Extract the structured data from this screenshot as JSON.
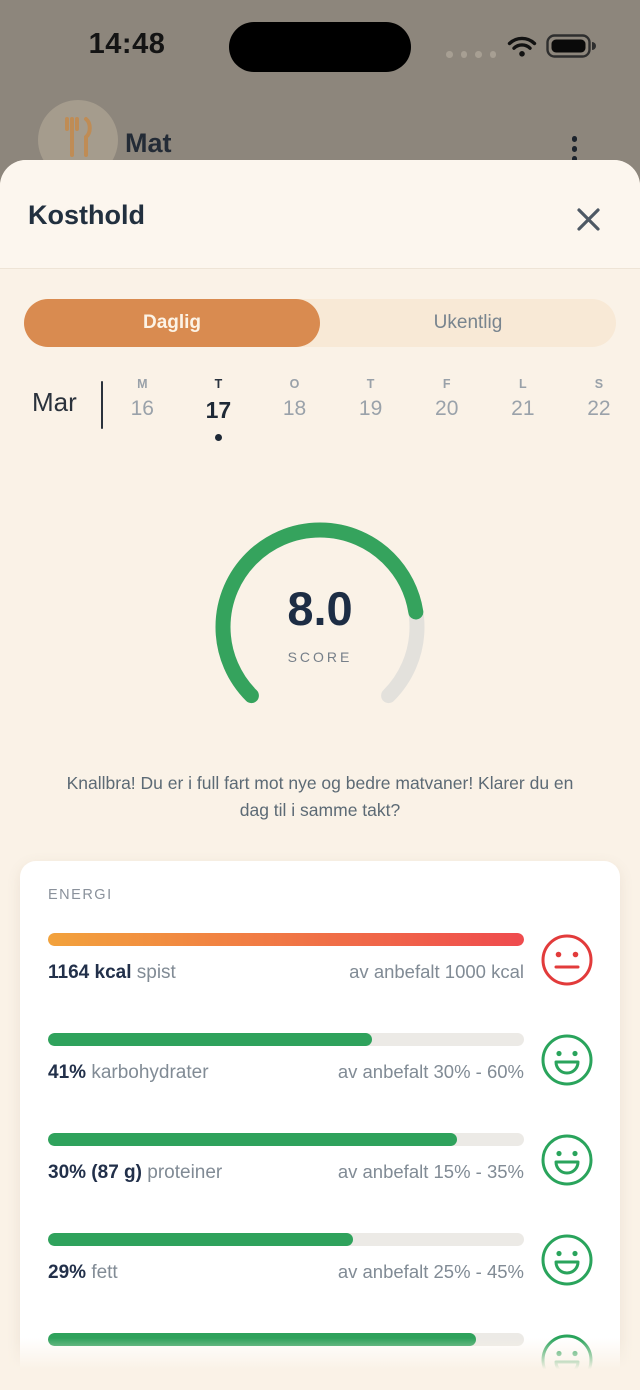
{
  "status_bar": {
    "time": "14:48",
    "icons": [
      "cellular-dots",
      "wifi",
      "battery-full"
    ]
  },
  "background_app": {
    "title": "Mat",
    "avatar_icon": "fork-knife",
    "menu_icon": "kebab-menu"
  },
  "modal": {
    "title": "Kosthold",
    "close_icon": "close",
    "tabs": [
      {
        "label": "Daglig",
        "selected": true
      },
      {
        "label": "Ukentlig",
        "selected": false
      }
    ],
    "date_picker": {
      "month": "Mar",
      "days": [
        {
          "letter": "M",
          "number": "16",
          "selected": false
        },
        {
          "letter": "T",
          "number": "17",
          "selected": true
        },
        {
          "letter": "O",
          "number": "18",
          "selected": false
        },
        {
          "letter": "T",
          "number": "19",
          "selected": false
        },
        {
          "letter": "F",
          "number": "20",
          "selected": false
        },
        {
          "letter": "L",
          "number": "21",
          "selected": false
        },
        {
          "letter": "S",
          "number": "22",
          "selected": false
        }
      ]
    },
    "score": {
      "value": "8.0",
      "label": "SCORE",
      "percent": 80
    },
    "message": "Knallbra! Du er i full fart mot nye og bedre matvaner! Klarer du en dag til i samme takt?",
    "energy_card": {
      "title": "ENERGI",
      "rows": [
        {
          "value": "1164 kcal",
          "label": "spist",
          "recommended": "av anbefalt 1000 kcal",
          "fill": 100,
          "bar": "gradient",
          "face": {
            "type": "neutral",
            "color": "#E23B3B"
          }
        },
        {
          "value": "41%",
          "label": "karbohydrater",
          "recommended": "av anbefalt 30% - 60%",
          "fill": 68,
          "bar": "green",
          "face": {
            "type": "happy",
            "color": "#2AA45C"
          }
        },
        {
          "value": "30% (87 g)",
          "label": "proteiner",
          "recommended": "av anbefalt 15% - 35%",
          "fill": 86,
          "bar": "green",
          "face": {
            "type": "happy",
            "color": "#2AA45C"
          }
        },
        {
          "value": "29%",
          "label": "fett",
          "recommended": "av anbefalt 25% - 45%",
          "fill": 64,
          "bar": "green",
          "face": {
            "type": "happy",
            "color": "#2AA45C"
          }
        },
        {
          "value": "",
          "label": "",
          "recommended": "",
          "fill": 90,
          "bar": "green",
          "face": {
            "type": "happy",
            "color": "#2AA45C"
          }
        }
      ]
    }
  },
  "colors": {
    "accent_orange": "#D98B50",
    "score_green": "#35A35D",
    "bar_green": "#2FA25C",
    "bar_track": "#ECEAE6",
    "energy_gradient_start": "#F2A23C",
    "energy_gradient_end": "#EF4B4E",
    "face_red": "#E23B3B",
    "face_green": "#2AA45C",
    "cream_background": "#FAF2E7",
    "navy_text": "#22304A"
  }
}
